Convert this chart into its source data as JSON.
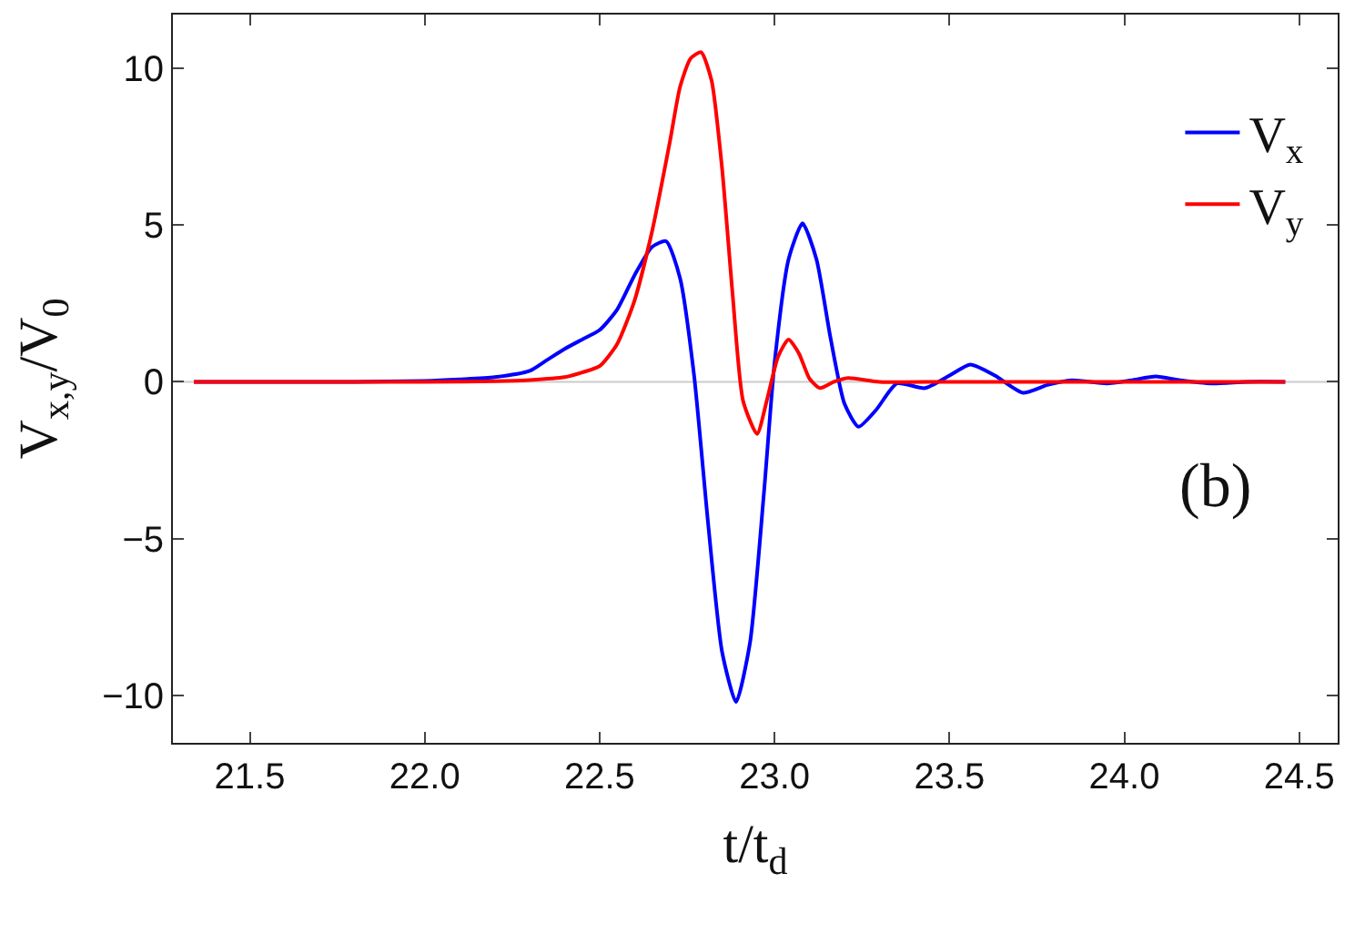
{
  "chart_data": {
    "type": "line",
    "xlabel": "t/t$_{d}$",
    "ylabel": "V$_{x,y}$/V$_{0}$",
    "xlim": [
      21.28,
      24.61
    ],
    "ylim": [
      -11.5,
      11.7
    ],
    "xticks": [
      21.5,
      {
        "value": 22,
        "label": "22.0"
      },
      22.5,
      {
        "value": 23,
        "label": "23.0"
      },
      23.5,
      {
        "value": 24,
        "label": "24.0"
      },
      24.5
    ],
    "yticks": [
      -10,
      -5,
      0,
      5,
      10
    ],
    "grid": false,
    "legend": "top right",
    "annotations": [
      "(b)"
    ],
    "ref_lines": [
      {
        "axis": "y",
        "value": 0,
        "color": "#cccccc"
      }
    ],
    "series": [
      {
        "name": "V$_{x}$",
        "color": "#0000ff",
        "x": [
          21.34,
          21.8,
          22.0,
          22.1,
          22.2,
          22.3,
          22.35,
          22.4,
          22.45,
          22.5,
          22.55,
          22.6,
          22.65,
          22.69,
          22.73,
          22.77,
          22.81,
          22.85,
          22.89,
          22.93,
          22.97,
          23.0,
          23.04,
          23.08,
          23.12,
          23.16,
          23.2,
          23.24,
          23.29,
          23.35,
          23.43,
          23.5,
          23.56,
          23.63,
          23.71,
          23.78,
          23.85,
          23.95,
          24.02,
          24.09,
          24.16,
          24.25,
          24.35,
          24.46
        ],
        "values": [
          0,
          0,
          0.03,
          0.08,
          0.15,
          0.35,
          0.7,
          1.05,
          1.35,
          1.65,
          2.3,
          3.4,
          4.3,
          4.48,
          3.3,
          0.2,
          -4.5,
          -8.6,
          -10.2,
          -8.3,
          -3.5,
          0.6,
          3.9,
          5.05,
          3.9,
          1.4,
          -0.7,
          -1.43,
          -0.9,
          -0.05,
          -0.2,
          0.2,
          0.55,
          0.2,
          -0.35,
          -0.1,
          0.05,
          -0.05,
          0.05,
          0.17,
          0.05,
          -0.05,
          0.0,
          0
        ]
      },
      {
        "name": "V$_{y}$",
        "color": "#ff0000",
        "x": [
          21.34,
          22.0,
          22.2,
          22.3,
          22.4,
          22.45,
          22.5,
          22.55,
          22.6,
          22.65,
          22.7,
          22.73,
          22.76,
          22.79,
          22.82,
          22.85,
          22.88,
          22.91,
          22.95,
          22.98,
          23.01,
          23.04,
          23.07,
          23.1,
          23.13,
          23.17,
          23.21,
          23.3,
          23.5,
          24.0,
          24.46
        ],
        "values": [
          0,
          0,
          0.02,
          0.06,
          0.15,
          0.3,
          0.5,
          1.2,
          2.6,
          4.8,
          7.6,
          9.4,
          10.3,
          10.5,
          9.6,
          6.8,
          2.8,
          -0.6,
          -1.66,
          -0.5,
          0.8,
          1.35,
          0.9,
          0.1,
          -0.2,
          0.0,
          0.12,
          0.0,
          0,
          0,
          0
        ]
      }
    ]
  }
}
